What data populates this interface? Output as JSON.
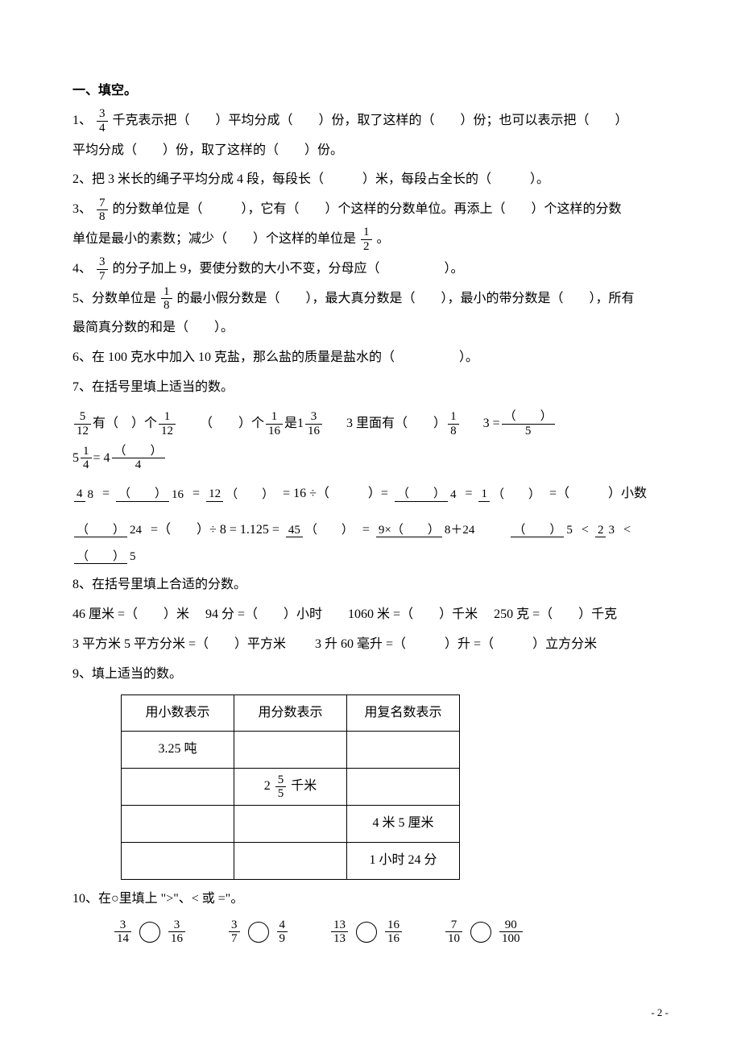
{
  "heading": "一、填空。",
  "q1": {
    "num": "1、",
    "frac": {
      "n": "3",
      "d": "4"
    },
    "t1": "千克表示把（　　）平均分成（　　）份，取了这样的（　　）份；也可以表示把（　　）",
    "t2": "平均分成（　　）份，取了这样的（　　）份。"
  },
  "q2": "2、把 3 米长的绳子平均分成 4 段，每段长（　　　）米，每段占全长的（　　　）。",
  "q3": {
    "num": "3、",
    "frac": {
      "n": "7",
      "d": "8"
    },
    "t1": "的分数单位是（　　　），它有（　　）个这样的分数单位。再添上（　　）个这样的分数",
    "t2a": "单位是最小的素数；减少（　　）个这样的单位是",
    "frac2": {
      "n": "1",
      "d": "2"
    },
    "t2b": "。"
  },
  "q4": {
    "num": "4、",
    "frac": {
      "n": "3",
      "d": "7"
    },
    "t1": "的分子加上 9，要使分数的大小不变，分母应（　　　　　）。"
  },
  "q5": {
    "t1": "5、分数单位是",
    "frac": {
      "n": "1",
      "d": "8"
    },
    "t2": "的最小假分数是（　　），最大真分数是（　　），最小的带分数是（　　），所有",
    "t3": "最简真分数的和是（　　）。"
  },
  "q6": "6、在 100 克水中加入 10 克盐，那么盐的质量是盐水的（　　　　　）。",
  "q7": {
    "title": "7、在括号里填上适当的数。",
    "r1": {
      "a": {
        "f": {
          "n": "5",
          "d": "12"
        },
        "t": "有（　）个",
        "f2": {
          "n": "1",
          "d": "12"
        }
      },
      "b": {
        "t1": "（　　）个",
        "f": {
          "n": "1",
          "d": "16"
        },
        "t2": "是",
        "whole": "1",
        "f2": {
          "n": "3",
          "d": "16"
        }
      },
      "c": {
        "t1": "3 里面有（　　）",
        "f": {
          "n": "1",
          "d": "8"
        }
      },
      "d": {
        "t1": "3 =",
        "f": {
          "n": "（　　）",
          "d": "5"
        }
      },
      "e": {
        "whole": "5",
        "f": {
          "n": "1",
          "d": "4"
        },
        "t": " =  4",
        "f2": {
          "n": "（　　）",
          "d": "4"
        }
      }
    },
    "r2": {
      "f1": {
        "n": "4",
        "d": "8"
      },
      "f2": {
        "n": "（　　）",
        "d": "16"
      },
      "f3": {
        "n": "12",
        "d": "（　　）"
      },
      "t1": "= 16 ÷（　　　）=",
      "f4": {
        "n": "（　　）",
        "d": "4"
      },
      "f5": {
        "n": "1",
        "d": "（　　）"
      },
      "t2": "=（　　　）小数"
    },
    "r3": {
      "f1": {
        "n": "（　　）",
        "d": "24"
      },
      "t1": "=（　　）÷ 8 = 1.125 =",
      "f2": {
        "n": "45",
        "d": "（　　）"
      },
      "f3": {
        "n": "9×（　　）",
        "d": "8＋24"
      },
      "ineq_f1": {
        "n": "（　　）",
        "d": "5"
      },
      "ineq_mid": {
        "n": "2",
        "d": "3"
      },
      "ineq_f2": {
        "n": "（　　）",
        "d": "5"
      }
    }
  },
  "q8": {
    "title": "8、在括号里填上合适的分数。",
    "r1": "46 厘米 =（　　）米　 94 分 =（　　）小时　　1060 米 =（　　）千米　 250 克 =（　　）千克",
    "r2": "3 平方米 5 平方分米 =（　　）平方米　　 3 升 60 毫升 =（　　　）升 =（　　　）立方分米"
  },
  "q9": {
    "title": "9、填上适当的数。",
    "headers": [
      "用小数表示",
      "用分数表示",
      "用复名数表示"
    ],
    "rows": [
      [
        "3.25 吨",
        "",
        ""
      ],
      [
        "",
        {
          "type": "mixed",
          "whole": "2",
          "n": "5",
          "d": "5",
          "unit": "千米"
        },
        ""
      ],
      [
        "",
        "",
        "4 米 5 厘米"
      ],
      [
        "",
        "",
        "1 小时 24 分"
      ]
    ]
  },
  "q10": {
    "title": "10、在○里填上 \">\"、< 或 =\"。",
    "items": [
      {
        "l": {
          "n": "3",
          "d": "14"
        },
        "r": {
          "n": "3",
          "d": "16"
        }
      },
      {
        "l": {
          "n": "3",
          "d": "7"
        },
        "r": {
          "n": "4",
          "d": "9"
        }
      },
      {
        "l": {
          "n": "13",
          "d": "13"
        },
        "r": {
          "n": "16",
          "d": "16"
        }
      },
      {
        "l": {
          "n": "7",
          "d": "10"
        },
        "r": {
          "n": "90",
          "d": "100"
        }
      }
    ]
  },
  "pagenum": "- 2 -"
}
